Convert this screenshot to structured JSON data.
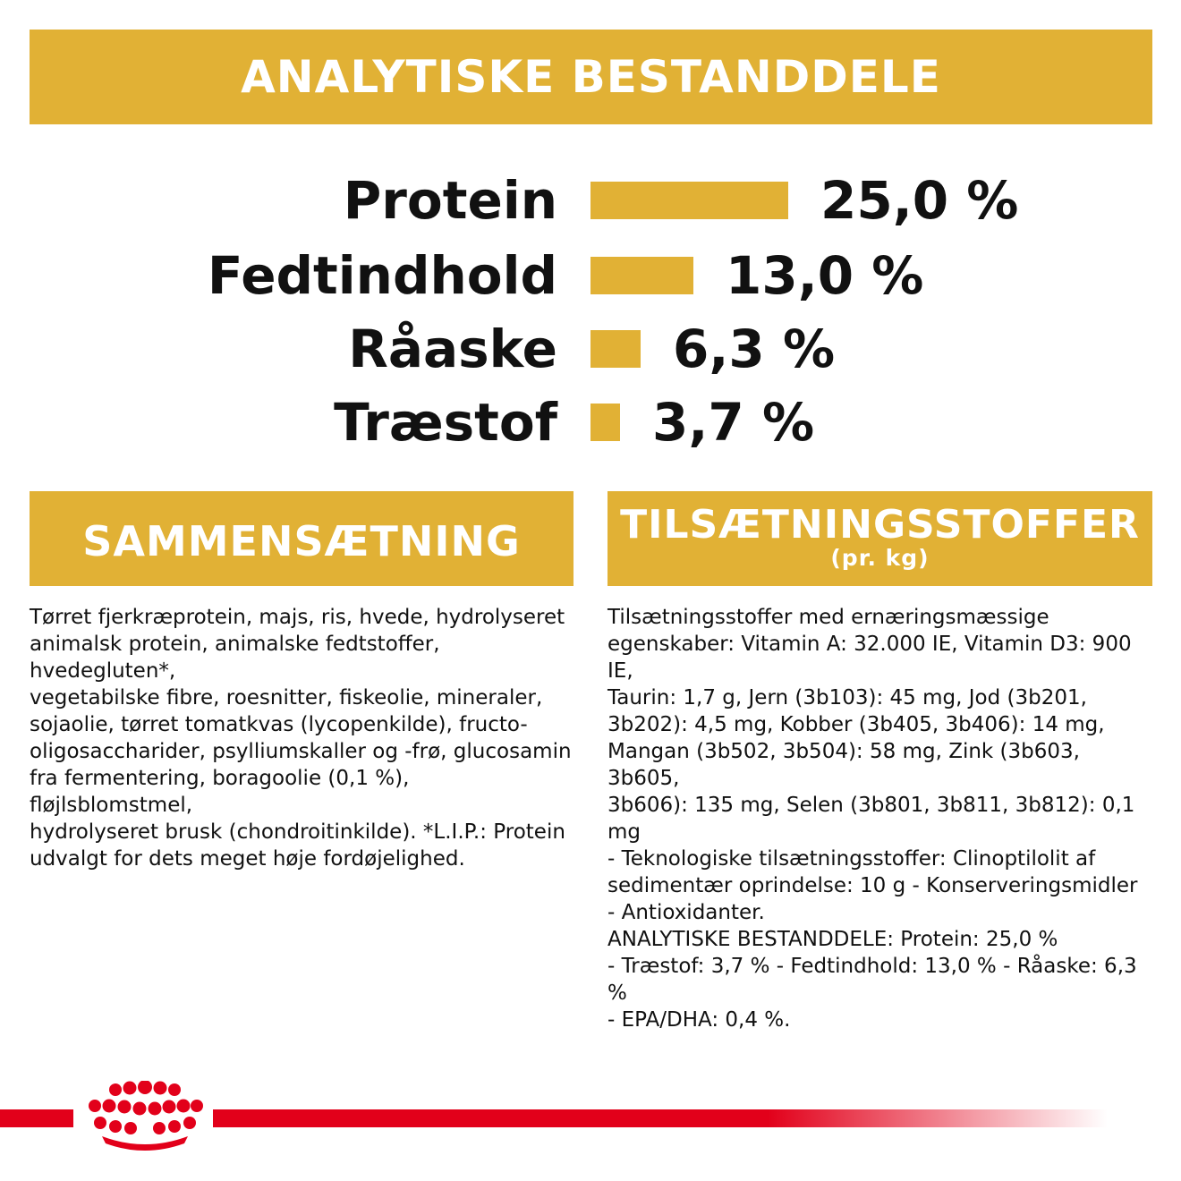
{
  "analytic_section": {
    "title": "ANALYTISKE BESTANDDELE",
    "rows": [
      {
        "label": "Protein",
        "value": "25,0 %",
        "percent": 25.0
      },
      {
        "label": "Fedtindhold",
        "value": "13,0 %",
        "percent": 13.0
      },
      {
        "label": "Råaske",
        "value": "6,3 %",
        "percent": 6.3
      },
      {
        "label": "Træstof",
        "value": "3,7 %",
        "percent": 3.7
      }
    ]
  },
  "composition_section": {
    "title": "SAMMENSÆTNING",
    "text": "Tørret fjerkræprotein, majs, ris, hvede, hydrolyseret\nanimalsk protein, animalske fedtstoffer, hvedegluten*,\nvegetabilske fibre, roesnitter, fiskeolie, mineraler,\nsojaolie, tørret tomatkvas (lycopenkilde), fructo-\noligosaccharider, psylliumskaller og -frø, glucosamin\nfra fermentering, boragoolie (0,1 %), fløjlsblomstmel,\nhydrolyseret brusk (chondroitinkilde). *L.I.P.: Protein\nudvalgt for dets meget høje fordøjelighed."
  },
  "additives_section": {
    "title": "TILSÆTNINGSSTOFFER",
    "subtitle": "(pr. kg)",
    "text": "Tilsætningsstoffer med ernæringsmæssige\negenskaber: Vitamin A: 32.000 IE, Vitamin D3: 900 IE,\nTaurin: 1,7 g, Jern (3b103): 45 mg, Jod (3b201,\n3b202): 4,5 mg, Kobber (3b405, 3b406): 14 mg,\nMangan (3b502, 3b504): 58 mg, Zink (3b603, 3b605,\n3b606): 135 mg, Selen (3b801, 3b811, 3b812): 0,1 mg\n- Teknologiske tilsætningsstoffer: Clinoptilolit af\nsedimentær oprindelse: 10 g - Konserveringsmidler\n- Antioxidanter.\nANALYTISKE BESTANDDELE: Protein: 25,0 %\n- Træstof: 3,7 % - Fedtindhold: 13,0 % - Råaske: 6,3 %\n- EPA/DHA: 0,4 %."
  },
  "colors": {
    "accent_gold": "#E1B135",
    "brand_red": "#E2001A",
    "text": "#111111"
  },
  "footer": {
    "logo_icon": "royal-canin-crown-icon"
  }
}
